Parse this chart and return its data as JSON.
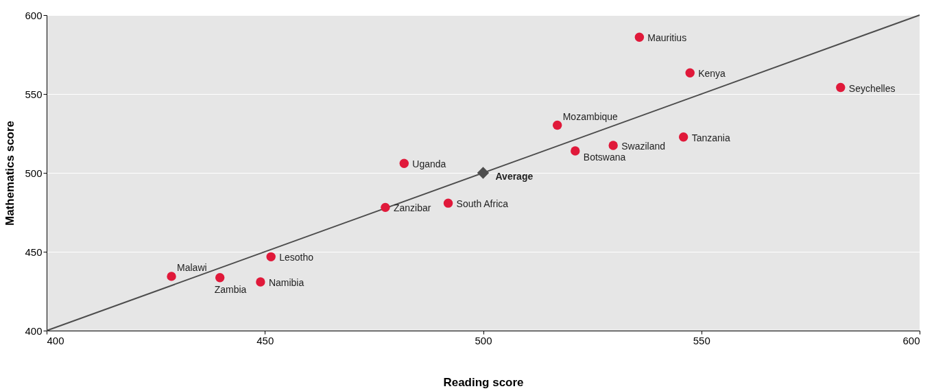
{
  "chart_data": {
    "type": "scatter",
    "xlabel": "Reading score",
    "ylabel": "Mathematics score",
    "xlim": [
      400,
      600
    ],
    "ylim": [
      400,
      600
    ],
    "xticks": [
      400,
      450,
      500,
      550,
      600
    ],
    "yticks": [
      400,
      450,
      500,
      550,
      600
    ],
    "grid": "y",
    "marker": "circle",
    "series": [
      {
        "type": "line",
        "color": "#4d4d4d",
        "marker": "none",
        "x": [
          400,
          600
        ],
        "values": [
          400,
          600
        ]
      },
      {
        "color": "#e0193a",
        "x": [
          535.8,
          547.4,
          581.9,
          517,
          545.9,
          529.8,
          521.1,
          481.9,
          492,
          477.6,
          451.4,
          428.6,
          439.7,
          449
        ],
        "values": [
          586,
          563.4,
          554.1,
          530.2,
          522.7,
          517.4,
          513.9,
          506,
          480.8,
          478.1,
          446.8,
          434.4,
          433.6,
          430.9
        ]
      },
      {
        "name": "Average",
        "color": "#4d4d4d",
        "marker": "diamond",
        "x": [
          500
        ],
        "values": [
          500
        ]
      }
    ],
    "annotations": [
      {
        "text": "Mauritius",
        "x": 535.8,
        "y": 586
      },
      {
        "text": "Kenya",
        "x": 547.4,
        "y": 563.4
      },
      {
        "text": "Seychelles",
        "x": 581.9,
        "y": 554.1
      },
      {
        "text": "Mozambique",
        "x": 517,
        "y": 530.2
      },
      {
        "text": "Tanzania",
        "x": 545.9,
        "y": 522.7
      },
      {
        "text": "Swaziland",
        "x": 529.8,
        "y": 517.4
      },
      {
        "text": "Botswana",
        "x": 521.1,
        "y": 513.9
      },
      {
        "text": "Uganda",
        "x": 481.9,
        "y": 506
      },
      {
        "text": "South Africa",
        "x": 492,
        "y": 480.8
      },
      {
        "text": "Zanzibar",
        "x": 477.6,
        "y": 478.1
      },
      {
        "text": "Lesotho",
        "x": 451.4,
        "y": 446.8
      },
      {
        "text": "Malawi",
        "x": 428.6,
        "y": 434.4
      },
      {
        "text": "Zambia",
        "x": 439.7,
        "y": 433.6
      },
      {
        "text": "Namibia",
        "x": 449,
        "y": 430.9
      }
    ]
  }
}
